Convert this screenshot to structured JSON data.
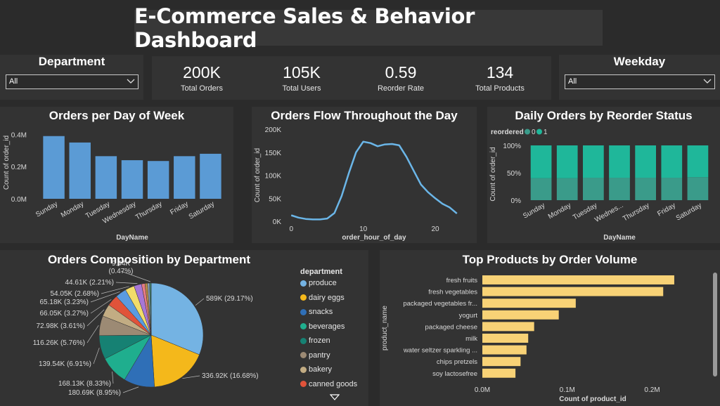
{
  "header": {
    "title": "E-Commerce Sales & Behavior Dashboard"
  },
  "department_slicer": {
    "title": "Department",
    "value": "All"
  },
  "weekday_slicer": {
    "title": "Weekday",
    "value": "All"
  },
  "kpis": [
    {
      "value": "200K",
      "label": "Total Orders"
    },
    {
      "value": "105K",
      "label": "Total Users"
    },
    {
      "value": "0.59",
      "label": "Reorder Rate"
    },
    {
      "value": "134",
      "label": "Total Products"
    }
  ],
  "colors": {
    "bar_blue": "#5b9bd5",
    "teal_dark": "#3a9b8a",
    "teal_light": "#1fb79a",
    "yellow": "#f8d276",
    "line": "#6bb6e8"
  },
  "chart_data": [
    {
      "type": "bar",
      "title": "Orders per Day of Week",
      "xlabel": "DayName",
      "ylabel": "Count of order_id",
      "categories": [
        "Sunday",
        "Monday",
        "Tuesday",
        "Wednesday",
        "Thursday",
        "Friday",
        "Saturday"
      ],
      "values": [
        0.39,
        0.35,
        0.265,
        0.24,
        0.235,
        0.265,
        0.28
      ],
      "ylim": [
        0,
        0.45
      ],
      "yticks": [
        "0.0M",
        "0.2M",
        "0.4M"
      ],
      "ytick_values": [
        0,
        0.2,
        0.4
      ]
    },
    {
      "type": "line",
      "title": "Orders Flow Throughout the Day",
      "xlabel": "order_hour_of_day",
      "ylabel": "Count of order_id",
      "x": [
        0,
        1,
        2,
        3,
        4,
        5,
        6,
        7,
        8,
        9,
        10,
        11,
        12,
        13,
        14,
        15,
        16,
        17,
        18,
        19,
        20,
        21,
        22,
        23
      ],
      "values": [
        13,
        8,
        5,
        4,
        4,
        6,
        18,
        55,
        105,
        150,
        173,
        170,
        163,
        167,
        168,
        165,
        140,
        110,
        80,
        63,
        50,
        38,
        30,
        17
      ],
      "xlim": [
        -1,
        24
      ],
      "ylim": [
        0,
        200
      ],
      "xticks": [
        "0",
        "10",
        "20"
      ],
      "xtick_values": [
        0,
        10,
        20
      ],
      "yticks": [
        "0K",
        "50K",
        "100K",
        "150K",
        "200K"
      ],
      "ytick_values": [
        0,
        50,
        100,
        150,
        200
      ]
    },
    {
      "type": "bar",
      "title": "Daily Orders by Reorder Status",
      "xlabel": "DayName",
      "ylabel": "Count of order_id",
      "legend_title": "reordered",
      "categories": [
        "Sunday",
        "Monday",
        "Tuesday",
        "Wednes...",
        "Thursday",
        "Friday",
        "Saturday"
      ],
      "series": [
        {
          "name": "0",
          "values": [
            40,
            40,
            41,
            41,
            41,
            41,
            42
          ]
        },
        {
          "name": "1",
          "values": [
            60,
            60,
            59,
            59,
            59,
            59,
            58
          ]
        }
      ],
      "ylim": [
        0,
        100
      ],
      "yticks": [
        "0%",
        "50%",
        "100%"
      ],
      "ytick_values": [
        0,
        50,
        100
      ]
    },
    {
      "type": "pie",
      "title": "Orders Composition by Department",
      "legend_title": "department",
      "slices": [
        {
          "name": "produce",
          "value": 589,
          "label": "589K (29.17%)",
          "color": "#74b3e3"
        },
        {
          "name": "dairy eggs",
          "value": 336.92,
          "label": "336.92K (16.68%)",
          "color": "#f4b81b"
        },
        {
          "name": "snacks",
          "value": 180.69,
          "label": "180.69K (8.95%)",
          "color": "#2f6fb7"
        },
        {
          "name": "beverages",
          "value": 168.13,
          "label": "168.13K (8.33%)",
          "color": "#1fae8e"
        },
        {
          "name": "frozen",
          "value": 139.54,
          "label": "139.54K (6.91%)",
          "color": "#168173"
        },
        {
          "name": "pantry",
          "value": 116.26,
          "label": "116.26K (5.76%)",
          "color": "#9c8a74"
        },
        {
          "name": "bakery",
          "value": 72.98,
          "label": "72.98K (3.61%)",
          "color": "#c2ac83"
        },
        {
          "name": "canned goods",
          "value": 66.05,
          "label": "66.05K (3.27%)",
          "color": "#e0533a"
        },
        {
          "name": "",
          "value": 65.18,
          "label": "65.18K (3.23%)",
          "color": "#5a9be0"
        },
        {
          "name": "",
          "value": 54.05,
          "label": "54.05K (2.68%)",
          "color": "#f1dc6a"
        },
        {
          "name": "",
          "value": 44.61,
          "label": "44.61K (2.21%)",
          "color": "#a777d6"
        },
        {
          "name": "",
          "value": 20,
          "label": "",
          "color": "#e57b83"
        },
        {
          "name": "",
          "value": 15,
          "label": "",
          "color": "#b98c46"
        },
        {
          "name": "",
          "value": 12,
          "label": "",
          "color": "#8aa5c2"
        },
        {
          "name": "",
          "value": 9.44,
          "label": "9.44K\n(0.47%)",
          "color": "#3f7d6a"
        }
      ]
    },
    {
      "type": "bar",
      "title": "Top Products by Order Volume",
      "xlabel": "Count of product_id",
      "ylabel": "product_name",
      "categories": [
        "fresh fruits",
        "fresh vegetables",
        "packaged vegetables fr...",
        "yogurt",
        "packaged cheese",
        "milk",
        "water seltzer sparkling ...",
        "chips pretzels",
        "soy lactosefree"
      ],
      "values": [
        0.226,
        0.213,
        0.11,
        0.09,
        0.061,
        0.054,
        0.052,
        0.045,
        0.039
      ],
      "xlim": [
        0,
        0.26
      ],
      "xticks": [
        "0.0M",
        "0.1M",
        "0.2M"
      ],
      "xtick_values": [
        0,
        0.1,
        0.2
      ]
    }
  ]
}
